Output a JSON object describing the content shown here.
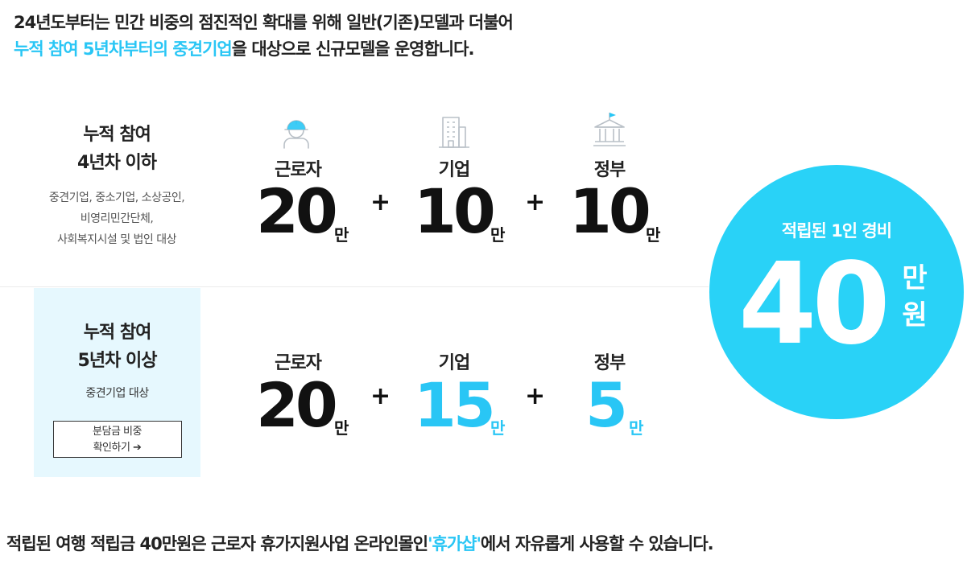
{
  "intro": {
    "line1": "24년도부터는 민간 비중의 점진적인 확대를 위해 일반(기존)모델과 더불어",
    "line2_highlight": "누적 참여 5년차부터의 중견기업",
    "line2_rest": "을 대상으로 신규모델을 운영합니다."
  },
  "tier1": {
    "title_line1": "누적 참여",
    "title_line2": "4년차 이하",
    "desc_line1": "중견기업, 중소기업, 소상공인,",
    "desc_line2": "비영리민간단체,",
    "desc_line3": "사회복지시설 및 법인 대상",
    "worker_label": "근로자",
    "worker_value": "20",
    "company_label": "기업",
    "company_value": "10",
    "gov_label": "정부",
    "gov_value": "10"
  },
  "tier2": {
    "title_line1": "누적 참여",
    "title_line2": "5년차 이상",
    "desc": "중견기업 대상",
    "button_line1": "분담금 비중",
    "button_line2": "확인하기 ➔",
    "worker_label": "근로자",
    "worker_value": "20",
    "company_label": "기업",
    "company_value": "15",
    "gov_label": "정부",
    "gov_value": "5"
  },
  "common": {
    "unit": "만",
    "plus": "+"
  },
  "total": {
    "label": "적립된 1인 경비",
    "value": "40",
    "unit1": "만",
    "unit2": "원"
  },
  "footer": {
    "pre": "적립된 여행 적립금 40만원은 근로자 휴가지원사업 온라인몰인",
    "highlight": "'휴가샵'",
    "post": "에서 자유롭게 사용할 수 있습니다."
  },
  "icons": {
    "worker": "worker-helmet-icon",
    "company": "office-building-icon",
    "government": "government-building-icon"
  },
  "colors": {
    "accent": "#29c6f5",
    "circle": "#29d2f7",
    "highlight_bg": "#e6f8fe"
  }
}
